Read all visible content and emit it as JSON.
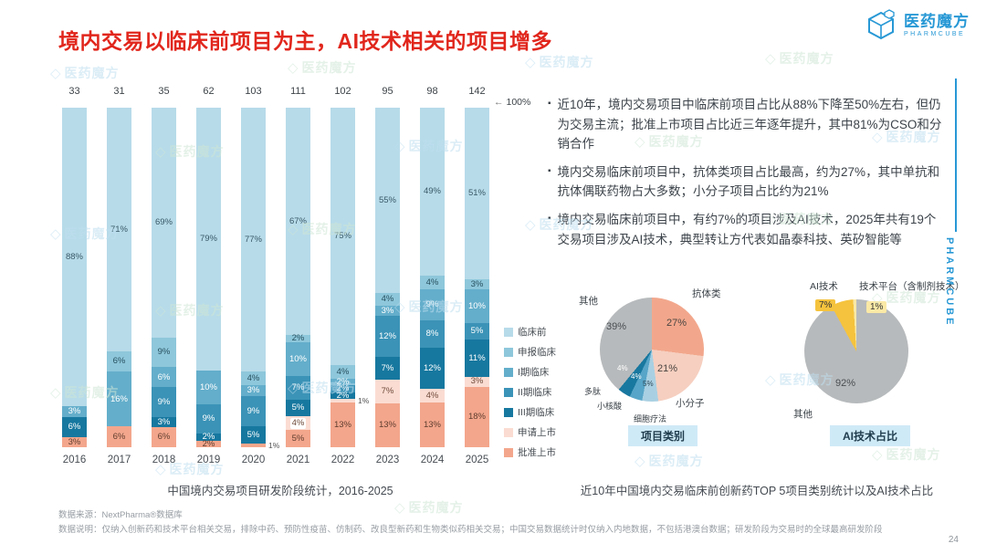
{
  "title": "境内交易以临床前项目为主，AI技术相关的项目增多",
  "brand": {
    "name": "医药魔方",
    "sub": "PHARMCUBE"
  },
  "side_label": "PHARMCUBE",
  "watermark": {
    "text": "医药魔方"
  },
  "insights": {
    "bullets": [
      "近10年，境内交易项目中临床前项目占比从88%下降至50%左右，但仍为交易主流；批准上市项目占比近三年逐年提升，其中81%为CSO和分销合作",
      "境内交易临床前项目中，抗体类项目占比最高，约为27%，其中单抗和抗体偶联药物占大多数；小分子项目占比约为21%",
      "境内交易临床前项目中，有约7%的项目涉及AI技术，2025年共有19个交易项目涉及AI技术，典型转让方代表如晶泰科技、英矽智能等"
    ]
  },
  "captions": {
    "left": "中国境内交易项目研发阶段统计，2016-2025",
    "right": "近10年中国境内交易临床前创新药TOP 5项目类别统计以及AI技术占比"
  },
  "footer": {
    "source": "数据来源：NextPharma®数据库",
    "note": "数据说明：仅纳入创新药和技术平台相关交易，排除中药、预防性疫苗、仿制药、改良型新药和生物类似药相关交易；中国交易数据统计时仅纳入内地数据，不包括港澳台数据；研发阶段为交易时的全球最高研发阶段",
    "page": "24"
  },
  "chart_data": [
    {
      "type": "bar",
      "stacked": true,
      "title": "中国境内交易项目研发阶段统计，2016-2025",
      "categories": [
        "2016",
        "2017",
        "2018",
        "2019",
        "2020",
        "2021",
        "2022",
        "2023",
        "2024",
        "2025"
      ],
      "totals": [
        33,
        31,
        35,
        62,
        103,
        111,
        102,
        95,
        98,
        142
      ],
      "axis_marker": "100%",
      "highlight": {
        "year": "2021",
        "series": "申请上市"
      },
      "legend_position": "right",
      "series": [
        {
          "name": "临床前",
          "color": "#b7dbe9",
          "label_color": "#3a5a68",
          "values": [
            88,
            71,
            69,
            79,
            77,
            67,
            75,
            55,
            49,
            51
          ]
        },
        {
          "name": "申报临床",
          "color": "#8ec7db",
          "label_color": "#27505f",
          "values": [
            0,
            6,
            9,
            0,
            4,
            2,
            4,
            4,
            4,
            3
          ]
        },
        {
          "name": "I期临床",
          "color": "#64aecb",
          "label_color": "#ffffff",
          "values": [
            3,
            16,
            6,
            10,
            3,
            10,
            2,
            3,
            9,
            10
          ]
        },
        {
          "name": "II期临床",
          "color": "#3b93b7",
          "label_color": "#ffffff",
          "values": [
            0,
            0,
            9,
            9,
            9,
            7,
            2,
            12,
            8,
            5
          ]
        },
        {
          "name": "III期临床",
          "color": "#17789f",
          "label_color": "#ffffff",
          "values": [
            6,
            0,
            3,
            2,
            5,
            5,
            2,
            7,
            12,
            11
          ]
        },
        {
          "name": "申请上市",
          "color": "#fbdcd2",
          "label_color": "#6e4a3a",
          "values": [
            0,
            0,
            0,
            0,
            0,
            4,
            1,
            7,
            4,
            3
          ]
        },
        {
          "name": "批准上市",
          "color": "#f3a68c",
          "label_color": "#5f3d2e",
          "values": [
            3,
            6,
            6,
            2,
            1,
            5,
            13,
            13,
            13,
            18
          ]
        }
      ]
    },
    {
      "type": "pie",
      "title": "项目类别",
      "start_deg": 0,
      "slices": [
        {
          "label": "抗体类",
          "value": 27,
          "color": "#f2a78c"
        },
        {
          "label": "小分子",
          "value": 21,
          "color": "#f6cfc0"
        },
        {
          "label": "细胞疗法",
          "value": 5,
          "color": "#a9d0e2"
        },
        {
          "label": "小核酸",
          "value": 4,
          "color": "#57a5c8"
        },
        {
          "label": "多肽",
          "value": 4,
          "color": "#19789f"
        },
        {
          "label": "其他",
          "value": 39,
          "color": "#b7babc"
        }
      ]
    },
    {
      "type": "pie",
      "title": "AI技术占比",
      "start_deg": -28.8,
      "slices": [
        {
          "label": "AI技术",
          "value": 7,
          "color": "#f5c33d"
        },
        {
          "label": "技术平台（含制剂技术）",
          "value": 1,
          "color": "#fae9a6"
        },
        {
          "label": "其他",
          "value": 92,
          "color": "#b7babc"
        }
      ]
    }
  ]
}
